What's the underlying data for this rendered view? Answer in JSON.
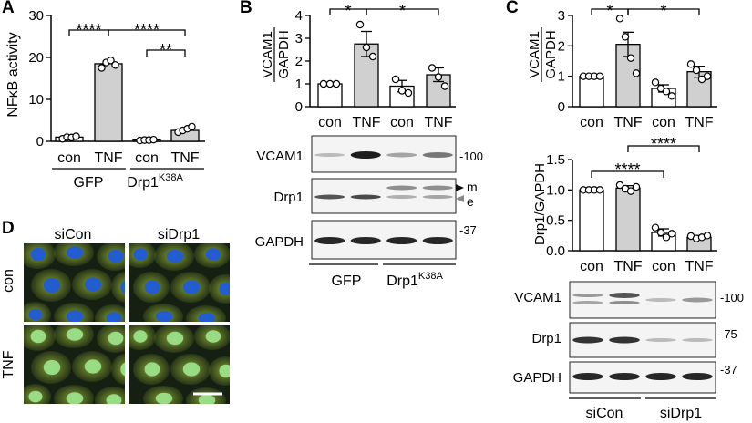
{
  "panels": {
    "A": "A",
    "B": "B",
    "C": "C",
    "D": "D"
  },
  "panel_a": {
    "ylabel": "NFκB activity",
    "yticks": [
      "0",
      "10",
      "20",
      "30"
    ],
    "xlabels": [
      "con",
      "TNF",
      "con",
      "TNF"
    ],
    "groups": [
      "GFP",
      "Drp1"
    ],
    "group2_sup": "K38A",
    "sig": [
      "****",
      "****",
      "**"
    ],
    "chart_data": {
      "type": "bar",
      "categories": [
        "con",
        "TNF",
        "con",
        "TNF"
      ],
      "groups": [
        "GFP",
        "GFP",
        "Drp1K38A",
        "Drp1K38A"
      ],
      "values": [
        1,
        18.5,
        0.3,
        2.6
      ],
      "points": [
        [
          0.6,
          1.0,
          0.9,
          1.2
        ],
        [
          17.5,
          18.8,
          19.3,
          18.2
        ],
        [
          0.2,
          0.3,
          0.3,
          0.4
        ],
        [
          2.2,
          2.6,
          3.0,
          3.5
        ]
      ],
      "ylim": [
        0,
        30
      ],
      "ylabel": "NFκB activity"
    }
  },
  "panel_b_chart": {
    "ylabel_top": "VCAM1",
    "ylabel_bottom": "GAPDH",
    "yticks": [
      "0",
      "1",
      "2",
      "3",
      "4"
    ],
    "xlabels": [
      "con",
      "TNF",
      "con",
      "TNF"
    ],
    "sig": [
      "*",
      "*"
    ],
    "chart_data": {
      "type": "bar",
      "categories": [
        "con",
        "TNF",
        "con",
        "TNF"
      ],
      "values": [
        1.0,
        2.75,
        0.9,
        1.4
      ],
      "errors": [
        0,
        0.55,
        0.25,
        0.3
      ],
      "points": [
        [
          1.0,
          1.0,
          1.0
        ],
        [
          3.6,
          2.6,
          2.2
        ],
        [
          1.2,
          0.7,
          0.6
        ],
        [
          1.7,
          1.3,
          0.9
        ]
      ],
      "ylim": [
        0,
        4
      ],
      "ylabel": "VCAM1 / GAPDH"
    }
  },
  "panel_b_blot": {
    "rows": [
      "VCAM1",
      "Drp1",
      "GAPDH"
    ],
    "markers": [
      "-100",
      "m",
      "e",
      "-37"
    ],
    "groups": [
      "GFP",
      "Drp1"
    ],
    "group2_sup": "K38A"
  },
  "panel_c_chart1": {
    "ylabel_top": "VCAM1",
    "ylabel_bottom": "GAPDH",
    "yticks": [
      "0",
      "1",
      "2",
      "3"
    ],
    "xlabels": [
      "con",
      "TNF",
      "con",
      "TNF"
    ],
    "sig": [
      "*",
      "*"
    ],
    "chart_data": {
      "type": "bar",
      "categories": [
        "con",
        "TNF",
        "con",
        "TNF"
      ],
      "values": [
        1.0,
        2.05,
        0.6,
        1.15
      ],
      "errors": [
        0,
        0.4,
        0.12,
        0.18
      ],
      "points": [
        [
          1.0,
          1.0,
          1.0,
          1.0
        ],
        [
          2.9,
          2.3,
          1.6,
          1.1
        ],
        [
          0.8,
          0.6,
          0.5,
          0.35
        ],
        [
          1.4,
          1.2,
          0.9,
          1.0
        ]
      ],
      "ylim": [
        0,
        3
      ],
      "ylabel": "VCAM1 / GAPDH"
    }
  },
  "panel_c_chart2": {
    "ylabel": "Drp1/GAPDH",
    "yticks": [
      "0.0",
      "0.5",
      "1.0",
      "1.5"
    ],
    "xlabels": [
      "con",
      "TNF",
      "con",
      "TNF"
    ],
    "sig": [
      "****",
      "****"
    ],
    "chart_data": {
      "type": "bar",
      "categories": [
        "con",
        "TNF",
        "con",
        "TNF"
      ],
      "values": [
        1.0,
        1.03,
        0.3,
        0.22
      ],
      "errors": [
        0,
        0.04,
        0.06,
        0.03
      ],
      "points": [
        [
          1.0,
          1.0,
          1.0,
          1.0
        ],
        [
          1.08,
          1.02,
          0.98,
          1.05
        ],
        [
          0.38,
          0.3,
          0.22,
          0.28
        ],
        [
          0.24,
          0.2,
          0.22,
          0.25
        ]
      ],
      "ylim": [
        0,
        1.5
      ],
      "ylabel": "Drp1/GAPDH"
    }
  },
  "panel_c_blot": {
    "rows": [
      "VCAM1",
      "Drp1",
      "GAPDH"
    ],
    "markers": [
      "-100",
      "-75",
      "-37"
    ],
    "groups": [
      "siCon",
      "siDrp1"
    ]
  },
  "panel_d": {
    "cols": [
      "siCon",
      "siDrp1"
    ],
    "rows": [
      "con",
      "TNF"
    ],
    "colors": {
      "background": "#152012",
      "cytoplasm": "#8aa834",
      "nucleus_blue": "#1f5bd8",
      "nucleus_green": "#9be08a",
      "scale_bar": "#ffffff"
    }
  }
}
